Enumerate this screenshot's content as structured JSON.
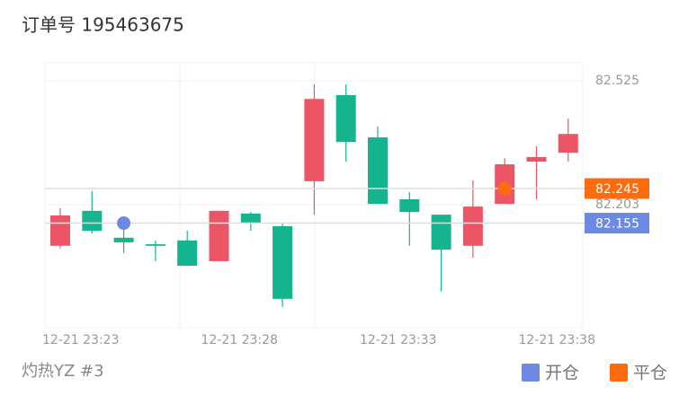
{
  "title": "订单号 195463675",
  "footer": "灼热YZ #3",
  "chart_data": {
    "type": "candlestick",
    "categories": [
      "12-21 23:23",
      null,
      null,
      null,
      null,
      "12-21 23:28",
      null,
      null,
      null,
      null,
      "12-21 23:33",
      null,
      null,
      null,
      null,
      "12-21 23:38",
      null
    ],
    "open": [
      82.096,
      82.187,
      82.117,
      82.1,
      82.11,
      82.056,
      82.18,
      82.147,
      82.264,
      82.488,
      82.378,
      82.217,
      82.177,
      82.096,
      82.205,
      82.315,
      82.338
    ],
    "close": [
      82.175,
      82.135,
      82.105,
      82.096,
      82.044,
      82.187,
      82.156,
      81.958,
      82.478,
      82.366,
      82.205,
      82.184,
      82.086,
      82.198,
      82.308,
      82.327,
      82.387
    ],
    "low": [
      82.089,
      82.128,
      82.077,
      82.056,
      82.044,
      82.056,
      82.135,
      81.937,
      82.177,
      82.315,
      82.205,
      82.096,
      81.977,
      82.065,
      82.205,
      82.217,
      82.315
    ],
    "high": [
      82.194,
      82.238,
      82.14,
      82.11,
      82.135,
      82.187,
      82.184,
      82.154,
      82.516,
      82.516,
      82.406,
      82.236,
      82.177,
      82.266,
      82.324,
      82.355,
      82.427
    ],
    "up_color": "#ec5565",
    "down_color": "#14b48f",
    "ylim": [
      81.883,
      82.572
    ],
    "yticks": [
      82.203,
      82.525
    ],
    "grid": true,
    "series": [
      {
        "name": "开仓",
        "color": "#6c8ae4",
        "values": [
          null,
          null,
          82.155,
          null,
          null,
          null,
          null,
          null,
          null,
          null,
          null,
          null,
          null,
          null,
          null,
          null,
          null
        ]
      },
      {
        "name": "平仓",
        "color": "#fd6b0f",
        "values": [
          null,
          null,
          null,
          null,
          null,
          null,
          null,
          null,
          null,
          null,
          null,
          null,
          null,
          null,
          82.245,
          null,
          null
        ]
      }
    ]
  }
}
